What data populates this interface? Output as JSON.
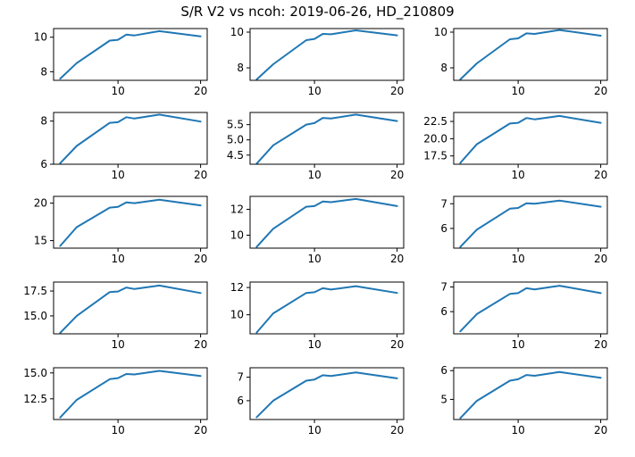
{
  "figure": {
    "title": "S/R V2 vs ncoh: 2019-06-26, HD_210809",
    "line_color": "#1f77b4"
  },
  "chart_data": [
    {
      "type": "line",
      "x": [
        3,
        5,
        9,
        10,
        11,
        12,
        15,
        20
      ],
      "y": [
        7.6,
        8.5,
        9.8,
        9.85,
        10.15,
        10.1,
        10.35,
        10.05
      ],
      "xlim": [
        2.2,
        20.8
      ],
      "ylim": [
        7.5,
        10.5
      ],
      "xticks": [
        10,
        20
      ],
      "yticks": [
        8,
        10
      ],
      "grid": false,
      "legend": "none"
    },
    {
      "type": "line",
      "x": [
        3,
        5,
        9,
        10,
        11,
        12,
        15,
        20
      ],
      "y": [
        7.35,
        8.2,
        9.55,
        9.62,
        9.9,
        9.88,
        10.1,
        9.82
      ],
      "xlim": [
        2.2,
        20.8
      ],
      "ylim": [
        7.3,
        10.2
      ],
      "xticks": [
        10,
        20
      ],
      "yticks": [
        8,
        10
      ],
      "grid": false,
      "legend": "none"
    },
    {
      "type": "line",
      "x": [
        3,
        5,
        9,
        10,
        11,
        12,
        15,
        20
      ],
      "y": [
        7.35,
        8.25,
        9.6,
        9.65,
        9.93,
        9.9,
        10.12,
        9.8
      ],
      "xlim": [
        2.2,
        20.8
      ],
      "ylim": [
        7.3,
        10.2
      ],
      "xticks": [
        10,
        20
      ],
      "yticks": [
        8,
        10
      ],
      "grid": false,
      "legend": "none"
    },
    {
      "type": "line",
      "x": [
        3,
        5,
        9,
        10,
        11,
        12,
        15,
        20
      ],
      "y": [
        6.05,
        6.85,
        7.92,
        7.95,
        8.18,
        8.12,
        8.3,
        7.98
      ],
      "xlim": [
        2.2,
        20.8
      ],
      "ylim": [
        6.0,
        8.4
      ],
      "xticks": [
        10,
        20
      ],
      "yticks": [
        6,
        8
      ],
      "grid": false,
      "legend": "none"
    },
    {
      "type": "line",
      "x": [
        3,
        5,
        9,
        10,
        11,
        12,
        15,
        20
      ],
      "y": [
        4.22,
        4.82,
        5.5,
        5.55,
        5.72,
        5.7,
        5.83,
        5.62
      ],
      "xlim": [
        2.2,
        20.8
      ],
      "ylim": [
        4.2,
        5.9
      ],
      "xticks": [
        10,
        20
      ],
      "yticks": [
        4.5,
        5.0,
        5.5
      ],
      "grid": false,
      "legend": "none"
    },
    {
      "type": "line",
      "x": [
        3,
        5,
        9,
        10,
        11,
        12,
        15,
        20
      ],
      "y": [
        16.5,
        19.2,
        22.2,
        22.3,
        23.0,
        22.8,
        23.3,
        22.3
      ],
      "xlim": [
        2.2,
        20.8
      ],
      "ylim": [
        16.3,
        23.8
      ],
      "xticks": [
        10,
        20
      ],
      "yticks": [
        17.5,
        20.0,
        22.5
      ],
      "grid": false,
      "legend": "none"
    },
    {
      "type": "line",
      "x": [
        3,
        5,
        9,
        10,
        11,
        12,
        15,
        20
      ],
      "y": [
        14.3,
        16.8,
        19.4,
        19.5,
        20.1,
        20.0,
        20.45,
        19.7
      ],
      "xlim": [
        2.2,
        20.8
      ],
      "ylim": [
        14.0,
        20.9
      ],
      "xticks": [
        10,
        20
      ],
      "yticks": [
        15,
        20
      ],
      "grid": false,
      "legend": "none"
    },
    {
      "type": "line",
      "x": [
        3,
        5,
        9,
        10,
        11,
        12,
        15,
        20
      ],
      "y": [
        9.1,
        10.5,
        12.2,
        12.25,
        12.6,
        12.55,
        12.8,
        12.25
      ],
      "xlim": [
        2.2,
        20.8
      ],
      "ylim": [
        9.0,
        13.0
      ],
      "xticks": [
        10,
        20
      ],
      "yticks": [
        10,
        12
      ],
      "grid": false,
      "legend": "none"
    },
    {
      "type": "line",
      "x": [
        3,
        5,
        9,
        10,
        11,
        12,
        15,
        20
      ],
      "y": [
        5.25,
        5.95,
        6.8,
        6.83,
        7.02,
        7.0,
        7.13,
        6.88
      ],
      "xlim": [
        2.2,
        20.8
      ],
      "ylim": [
        5.2,
        7.3
      ],
      "xticks": [
        10,
        20
      ],
      "yticks": [
        6,
        7
      ],
      "grid": false,
      "legend": "none"
    },
    {
      "type": "line",
      "x": [
        3,
        5,
        9,
        10,
        11,
        12,
        15,
        20
      ],
      "y": [
        13.3,
        15.0,
        17.4,
        17.45,
        17.85,
        17.7,
        18.05,
        17.3
      ],
      "xlim": [
        2.2,
        20.8
      ],
      "ylim": [
        13.2,
        18.4
      ],
      "xticks": [
        10,
        20
      ],
      "yticks": [
        15.0,
        17.5
      ],
      "grid": false,
      "legend": "none"
    },
    {
      "type": "line",
      "x": [
        3,
        5,
        9,
        10,
        11,
        12,
        15,
        20
      ],
      "y": [
        8.7,
        10.1,
        11.6,
        11.65,
        11.95,
        11.85,
        12.1,
        11.6
      ],
      "xlim": [
        2.2,
        20.8
      ],
      "ylim": [
        8.6,
        12.4
      ],
      "xticks": [
        10,
        20
      ],
      "yticks": [
        10,
        12
      ],
      "grid": false,
      "legend": "none"
    },
    {
      "type": "line",
      "x": [
        3,
        5,
        9,
        10,
        11,
        12,
        15,
        20
      ],
      "y": [
        5.2,
        5.9,
        6.72,
        6.75,
        6.95,
        6.9,
        7.05,
        6.75
      ],
      "xlim": [
        2.2,
        20.8
      ],
      "ylim": [
        5.1,
        7.2
      ],
      "xticks": [
        10,
        20
      ],
      "yticks": [
        6,
        7
      ],
      "grid": false,
      "legend": "none"
    },
    {
      "type": "line",
      "x": [
        3,
        5,
        9,
        10,
        11,
        12,
        15,
        20
      ],
      "y": [
        10.7,
        12.4,
        14.4,
        14.5,
        14.9,
        14.85,
        15.2,
        14.7
      ],
      "xlim": [
        2.2,
        20.8
      ],
      "ylim": [
        10.5,
        15.5
      ],
      "xticks": [
        10,
        20
      ],
      "yticks": [
        12.5,
        15.0
      ],
      "grid": false,
      "legend": "none"
    },
    {
      "type": "line",
      "x": [
        3,
        5,
        9,
        10,
        11,
        12,
        15,
        20
      ],
      "y": [
        5.3,
        6.0,
        6.85,
        6.9,
        7.08,
        7.05,
        7.2,
        6.95
      ],
      "xlim": [
        2.2,
        20.8
      ],
      "ylim": [
        5.2,
        7.4
      ],
      "xticks": [
        10,
        20
      ],
      "yticks": [
        6,
        7
      ],
      "grid": false,
      "legend": "none"
    },
    {
      "type": "line",
      "x": [
        3,
        5,
        9,
        10,
        11,
        12,
        15,
        20
      ],
      "y": [
        4.35,
        4.95,
        5.65,
        5.7,
        5.85,
        5.82,
        5.95,
        5.75
      ],
      "xlim": [
        2.2,
        20.8
      ],
      "ylim": [
        4.3,
        6.1
      ],
      "xticks": [
        10,
        20
      ],
      "yticks": [
        5,
        6
      ],
      "grid": false,
      "legend": "none"
    }
  ]
}
